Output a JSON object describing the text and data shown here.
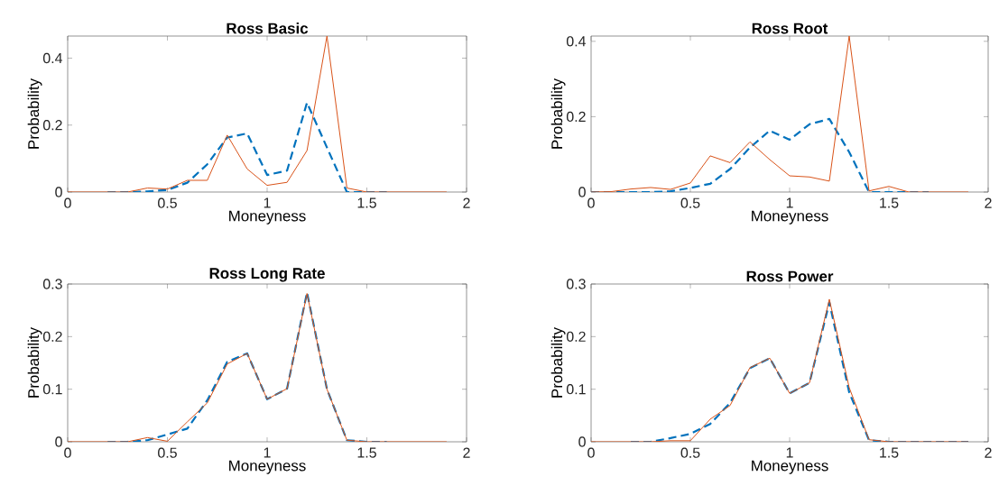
{
  "chart_data": [
    {
      "type": "line",
      "title": "Ross Basic",
      "xlabel": "Moneyness",
      "ylabel": "Probability",
      "x": [
        0,
        0.1,
        0.2,
        0.3,
        0.4,
        0.5,
        0.6,
        0.7,
        0.8,
        0.9,
        1.0,
        1.1,
        1.2,
        1.3,
        1.4,
        1.5,
        1.6,
        1.7,
        1.8,
        1.9
      ],
      "xlim": [
        0,
        2
      ],
      "ylim": [
        0,
        0.466
      ],
      "xticks": [
        0,
        0.5,
        1,
        1.5,
        2
      ],
      "yticks": [
        0,
        0.2,
        0.4
      ],
      "grid": false,
      "series": [
        {
          "color": "#0072bd",
          "line_style": "dashed",
          "values": [
            null,
            null,
            0,
            0,
            0.002,
            0.006,
            0.028,
            0.083,
            0.163,
            0.175,
            0.051,
            0.064,
            0.267,
            0.133,
            0,
            0,
            0,
            null,
            null,
            null
          ]
        },
        {
          "color": "#d95319",
          "line_style": "solid",
          "values": [
            0,
            0,
            0,
            0,
            0.012,
            0.009,
            0.035,
            0.035,
            0.17,
            0.069,
            0.02,
            0.029,
            0.124,
            0.466,
            0.012,
            0,
            0,
            0,
            0,
            0
          ]
        }
      ]
    },
    {
      "type": "line",
      "title": "Ross Root",
      "xlabel": "Moneyness",
      "ylabel": "Probability",
      "x": [
        0,
        0.1,
        0.2,
        0.3,
        0.4,
        0.5,
        0.6,
        0.7,
        0.8,
        0.9,
        1.0,
        1.1,
        1.2,
        1.3,
        1.4,
        1.5,
        1.6,
        1.7,
        1.8,
        1.9
      ],
      "xlim": [
        0,
        2
      ],
      "ylim": [
        0,
        0.414
      ],
      "xticks": [
        0,
        0.5,
        1,
        1.5,
        2
      ],
      "yticks": [
        0,
        0.2,
        0.4
      ],
      "grid": false,
      "series": [
        {
          "color": "#0072bd",
          "line_style": "dashed",
          "values": [
            0,
            0,
            0,
            0,
            0.002,
            0.011,
            0.022,
            0.061,
            0.118,
            0.163,
            0.139,
            0.18,
            0.194,
            0.106,
            0,
            0,
            0,
            0,
            null,
            null
          ]
        },
        {
          "color": "#d95319",
          "line_style": "solid",
          "values": [
            0,
            0.001,
            0.008,
            0.012,
            0.007,
            0.024,
            0.096,
            0.078,
            0.133,
            0.086,
            0.043,
            0.04,
            0.029,
            0.414,
            0.003,
            0.015,
            0,
            0,
            0,
            0
          ]
        }
      ]
    },
    {
      "type": "line",
      "title": "Ross Long Rate",
      "xlabel": "Moneyness",
      "ylabel": "Probability",
      "x": [
        0,
        0.1,
        0.2,
        0.3,
        0.4,
        0.5,
        0.6,
        0.7,
        0.8,
        0.9,
        1.0,
        1.1,
        1.2,
        1.3,
        1.4,
        1.5,
        1.6,
        1.7,
        1.8,
        1.9
      ],
      "xlim": [
        0,
        2
      ],
      "ylim": [
        0,
        0.3
      ],
      "xticks": [
        0,
        0.5,
        1,
        1.5,
        2
      ],
      "yticks": [
        0,
        0.1,
        0.2,
        0.3
      ],
      "grid": false,
      "series": [
        {
          "color": "#0072bd",
          "line_style": "dashed",
          "values": [
            null,
            null,
            0,
            0,
            0.003,
            0.014,
            0.025,
            0.079,
            0.152,
            0.168,
            0.081,
            0.101,
            0.284,
            0.1,
            0.003,
            0,
            0,
            null,
            null,
            null
          ]
        },
        {
          "color": "#d95319",
          "line_style": "solid",
          "values": [
            0,
            0,
            0,
            0,
            0.008,
            0.001,
            0.038,
            0.074,
            0.148,
            0.168,
            0.081,
            0.101,
            0.282,
            0.1,
            0.003,
            0,
            0,
            0,
            0,
            0
          ]
        }
      ]
    },
    {
      "type": "line",
      "title": "Ross Power",
      "xlabel": "Moneyness",
      "ylabel": "Probability",
      "x": [
        0,
        0.1,
        0.2,
        0.3,
        0.4,
        0.5,
        0.6,
        0.7,
        0.8,
        0.9,
        1.0,
        1.1,
        1.2,
        1.3,
        1.4,
        1.5,
        1.6,
        1.7,
        1.8,
        1.9
      ],
      "xlim": [
        0,
        2
      ],
      "ylim": [
        0,
        0.3
      ],
      "xticks": [
        0,
        0.5,
        1,
        1.5,
        2
      ],
      "yticks": [
        0,
        0.1,
        0.2,
        0.3
      ],
      "grid": false,
      "series": [
        {
          "color": "#0072bd",
          "line_style": "dashed",
          "values": [
            null,
            null,
            0,
            0,
            0.007,
            0.015,
            0.034,
            0.074,
            0.14,
            0.159,
            0.092,
            0.112,
            0.265,
            0.094,
            0.003,
            0,
            0,
            null,
            null,
            0
          ]
        },
        {
          "color": "#d95319",
          "line_style": "solid",
          "values": [
            0,
            0,
            0,
            0,
            0.002,
            0.002,
            0.043,
            0.069,
            0.141,
            0.159,
            0.092,
            0.112,
            0.271,
            0.103,
            0.004,
            0,
            0,
            0,
            0,
            0
          ]
        }
      ]
    }
  ]
}
